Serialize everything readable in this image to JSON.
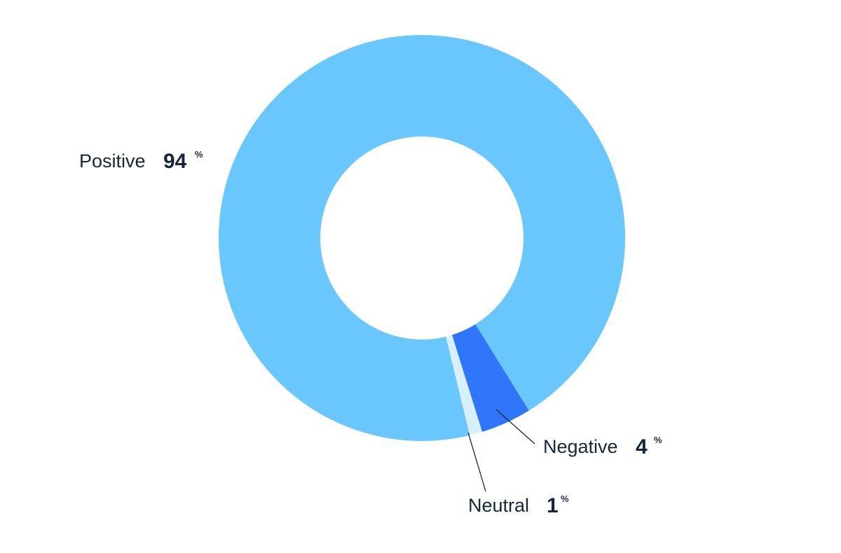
{
  "chart_data": {
    "type": "pie",
    "donut": true,
    "categories": [
      "Positive",
      "Negative",
      "Neutral"
    ],
    "values": [
      94,
      4,
      1
    ],
    "unit": "%",
    "colors": {
      "Positive": "#69c7fe",
      "Negative": "#2f76fb",
      "Neutral": "#d6f1fd"
    },
    "legend": "none",
    "title": "",
    "xlabel": "",
    "ylabel": ""
  }
}
